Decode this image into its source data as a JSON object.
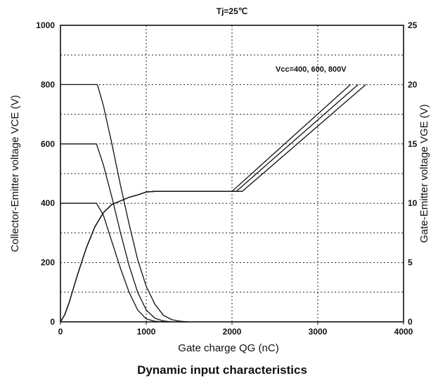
{
  "chart_data": {
    "type": "line",
    "title": "Dynamic input characteristics",
    "condition": "Tj=25℃",
    "xlabel": "Gate charge    QG (nC)",
    "ylabel_left": "Collector-Emitter voltage    VCE (V)",
    "ylabel_right": "Gate-Emitter voltage    VGE (V)",
    "annotation": "Vcc=400, 600, 800V",
    "xlim": [
      0,
      4000
    ],
    "ylim_left": [
      0,
      1000
    ],
    "ylim_right": [
      0,
      25
    ],
    "x_ticks": [
      "0",
      "1000",
      "2000",
      "3000",
      "4000"
    ],
    "y_left_ticks": [
      "0",
      "200",
      "400",
      "600",
      "800",
      "1000"
    ],
    "y_right_ticks": [
      "0",
      "5",
      "10",
      "15",
      "20",
      "25"
    ],
    "grid": "dotted",
    "series": [
      {
        "axis": "left",
        "points": [
          [
            0,
            400
          ],
          [
            420,
            400
          ],
          [
            500,
            360
          ],
          [
            600,
            270
          ],
          [
            700,
            180
          ],
          [
            800,
            100
          ],
          [
            900,
            40
          ],
          [
            1000,
            10
          ],
          [
            1100,
            2
          ],
          [
            1200,
            0
          ]
        ]
      },
      {
        "axis": "left",
        "points": [
          [
            0,
            600
          ],
          [
            420,
            600
          ],
          [
            500,
            530
          ],
          [
            600,
            420
          ],
          [
            700,
            300
          ],
          [
            800,
            190
          ],
          [
            900,
            100
          ],
          [
            1000,
            40
          ],
          [
            1100,
            12
          ],
          [
            1200,
            3
          ],
          [
            1300,
            0
          ]
        ]
      },
      {
        "axis": "left",
        "points": [
          [
            0,
            800
          ],
          [
            430,
            800
          ],
          [
            500,
            730
          ],
          [
            600,
            600
          ],
          [
            700,
            460
          ],
          [
            800,
            330
          ],
          [
            900,
            210
          ],
          [
            1000,
            120
          ],
          [
            1100,
            60
          ],
          [
            1200,
            22
          ],
          [
            1300,
            7
          ],
          [
            1400,
            2
          ],
          [
            1500,
            0
          ]
        ]
      },
      {
        "axis": "right",
        "points": [
          [
            0,
            0
          ],
          [
            50,
            0.6
          ],
          [
            100,
            1.6
          ],
          [
            200,
            4
          ],
          [
            300,
            6.2
          ],
          [
            400,
            8
          ],
          [
            500,
            9.2
          ],
          [
            600,
            9.9
          ],
          [
            700,
            10.2
          ],
          [
            800,
            10.5
          ],
          [
            900,
            10.7
          ],
          [
            1000,
            10.95
          ],
          [
            1100,
            11
          ],
          [
            2000,
            11
          ],
          [
            3380,
            20
          ]
        ]
      },
      {
        "axis": "right",
        "points": [
          [
            0,
            0
          ],
          [
            50,
            0.6
          ],
          [
            100,
            1.6
          ],
          [
            200,
            4
          ],
          [
            300,
            6.2
          ],
          [
            400,
            8
          ],
          [
            500,
            9.2
          ],
          [
            600,
            9.9
          ],
          [
            700,
            10.2
          ],
          [
            800,
            10.5
          ],
          [
            900,
            10.7
          ],
          [
            1000,
            10.95
          ],
          [
            1100,
            11
          ],
          [
            2050,
            11
          ],
          [
            3470,
            20
          ]
        ]
      },
      {
        "axis": "right",
        "points": [
          [
            0,
            0
          ],
          [
            50,
            0.6
          ],
          [
            100,
            1.6
          ],
          [
            200,
            4
          ],
          [
            300,
            6.2
          ],
          [
            400,
            8
          ],
          [
            500,
            9.2
          ],
          [
            600,
            9.9
          ],
          [
            700,
            10.2
          ],
          [
            800,
            10.5
          ],
          [
            900,
            10.7
          ],
          [
            1000,
            10.95
          ],
          [
            1100,
            11
          ],
          [
            2120,
            11
          ],
          [
            3560,
            20
          ]
        ]
      }
    ]
  }
}
